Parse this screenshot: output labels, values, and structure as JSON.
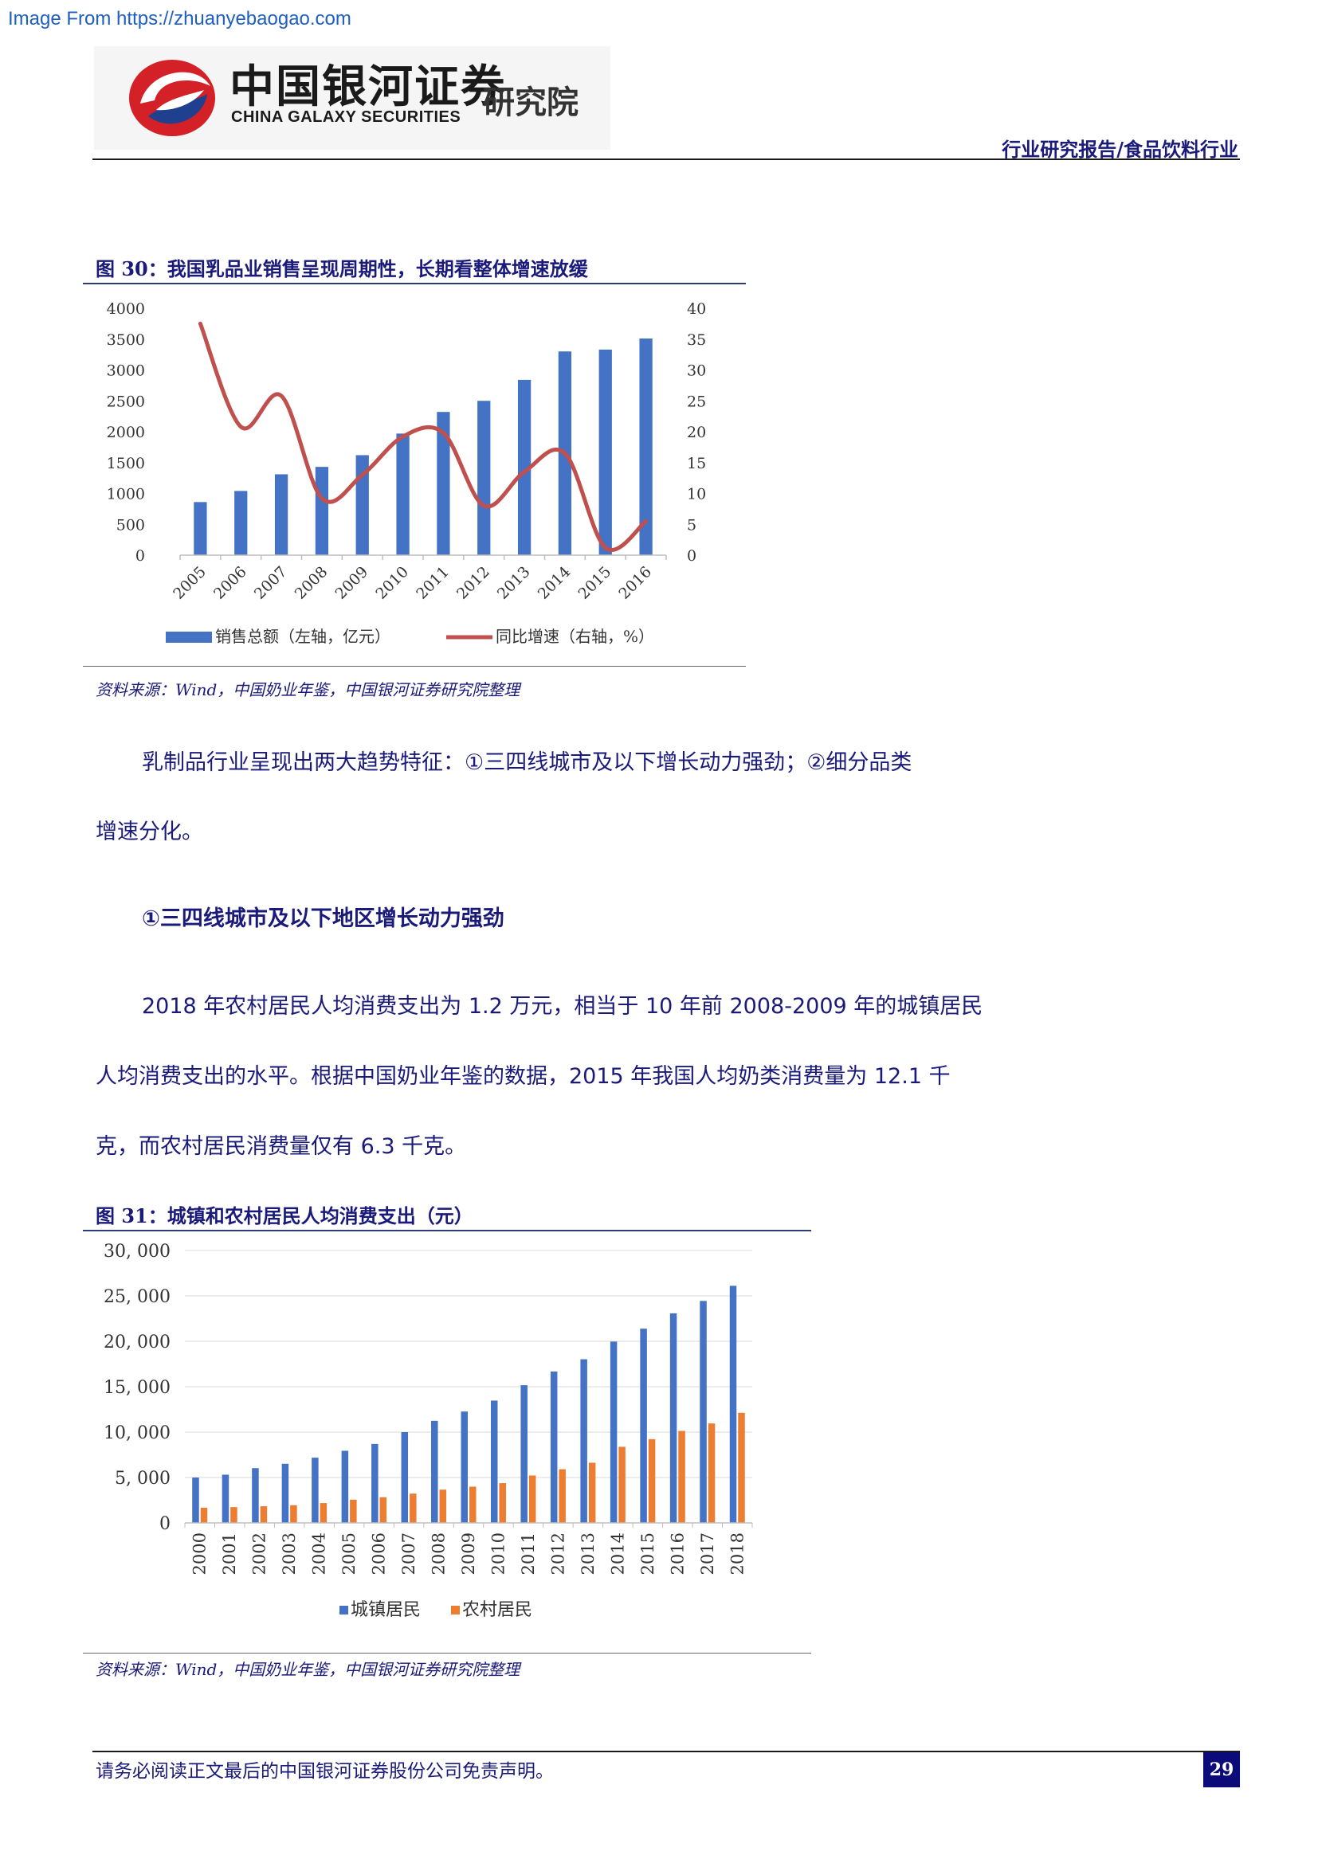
{
  "watermark": "Image From https://zhuanyebaogao.com",
  "logo": {
    "cn_name": "中国银河证券",
    "en_name": "CHINA GALAXY SECURITIES",
    "institute": "研究院"
  },
  "header": {
    "category": "行业研究报告/食品饮料行业"
  },
  "figure30": {
    "title": "图 30：我国乳品业销售呈现周期性，长期看整体增速放缓",
    "source": "资料来源：Wind，中国奶业年鉴，中国银河证券研究院整理"
  },
  "body": {
    "para1_line1": "乳制品行业呈现出两大趋势特征：①三四线城市及以下增长动力强劲；②细分品类",
    "para1_line2": "增速分化。",
    "heading1": "①三四线城市及以下地区增长动力强劲",
    "para2_line1": "2018 年农村居民人均消费支出为 1.2 万元，相当于 10 年前 2008-2009 年的城镇居民",
    "para2_line2": "人均消费支出的水平。根据中国奶业年鉴的数据，2015 年我国人均奶类消费量为 12.1 千",
    "para2_line3": "克，而农村居民消费量仅有 6.3 千克。"
  },
  "figure31": {
    "title": "图 31：城镇和农村居民人均消费支出（元）",
    "source": "资料来源：Wind，中国奶业年鉴，中国银河证券研究院整理"
  },
  "footer": {
    "disclaimer": "请务必阅读正文最后的中国银河证券股份公司免责声明。",
    "page_number": "29"
  },
  "colors": {
    "bar_blue": "#4472c4",
    "line_red": "#c0504d",
    "bar_orange": "#ed7d31"
  },
  "chart_data": [
    {
      "type": "bar",
      "categories": [
        "2005",
        "2006",
        "2007",
        "2008",
        "2009",
        "2010",
        "2011",
        "2012",
        "2013",
        "2014",
        "2015",
        "2016"
      ],
      "series": [
        {
          "name": "销售总额（左轴，亿元）",
          "axis": "left",
          "type": "bar",
          "values": [
            860,
            1040,
            1310,
            1430,
            1620,
            1970,
            2320,
            2500,
            2840,
            3300,
            3330,
            3510
          ]
        },
        {
          "name": "同比增速（右轴，%）",
          "axis": "right",
          "type": "line",
          "values": [
            37.5,
            20.8,
            25.8,
            9.2,
            13.0,
            19.2,
            19.8,
            8.0,
            13.5,
            16.5,
            1.2,
            5.5
          ]
        }
      ],
      "y_left_ticks": [
        "4000",
        "3500",
        "3000",
        "2500",
        "2000",
        "1500",
        "1000",
        "500",
        "0"
      ],
      "y_right_ticks": [
        "40",
        "35",
        "30",
        "25",
        "20",
        "15",
        "10",
        "5",
        "0"
      ],
      "ylim_left": [
        0,
        4000
      ],
      "ylim_right": [
        0,
        40
      ],
      "legend": "bottom",
      "grid": false
    },
    {
      "type": "bar",
      "categories": [
        "2000",
        "2001",
        "2002",
        "2003",
        "2004",
        "2005",
        "2006",
        "2007",
        "2008",
        "2009",
        "2010",
        "2011",
        "2012",
        "2013",
        "2014",
        "2015",
        "2016",
        "2017",
        "2018"
      ],
      "series": [
        {
          "name": "城镇居民",
          "values": [
            4998,
            5309,
            6030,
            6511,
            7182,
            7943,
            8697,
            9997,
            11243,
            12265,
            13471,
            15161,
            16674,
            18023,
            19968,
            21392,
            23079,
            24445,
            26112
          ]
        },
        {
          "name": "农村居民",
          "values": [
            1670,
            1741,
            1834,
            1943,
            2185,
            2555,
            2829,
            3224,
            3661,
            3993,
            4382,
            5221,
            5908,
            6626,
            8383,
            9223,
            10130,
            10955,
            12124
          ]
        }
      ],
      "y_ticks": [
        "30, 000",
        "25, 000",
        "20, 000",
        "15, 000",
        "10, 000",
        "5, 000",
        "0"
      ],
      "ylim": [
        0,
        30000
      ],
      "legend": "bottom",
      "grid": true
    }
  ]
}
